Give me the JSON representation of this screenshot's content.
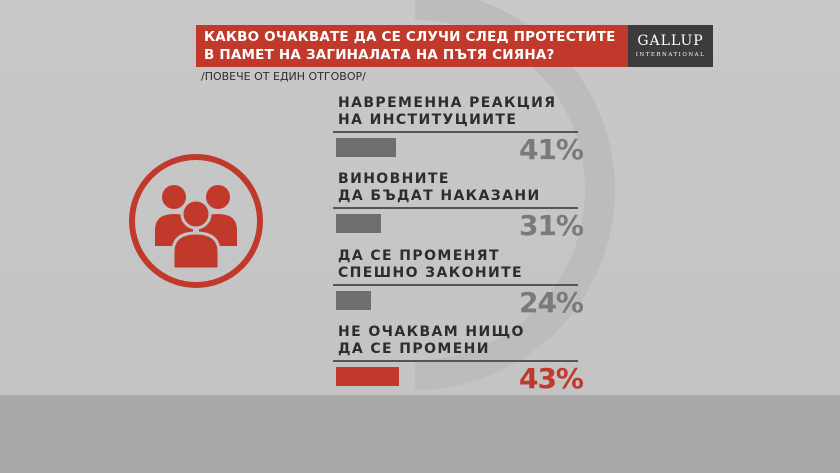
{
  "header": {
    "title_lines": [
      "КАКВО ОЧАКВАТЕ ДА СЕ СЛУЧИ СЛЕД ПРОТЕСТИТЕ",
      "В ПАМЕТ НА ЗАГИНАЛАТА НА ПЪТЯ СИЯНА?"
    ],
    "subtitle": "/ПОВЕЧЕ ОТ ЕДИН ОТГОВОР/",
    "logo_text": "GALLUP",
    "logo_sub": "INTERNATIONAL"
  },
  "icons": {
    "people": "people-group-icon"
  },
  "colors": {
    "accent_red": "#c0392b",
    "bar_gray": "#6e6e6e",
    "pct_gray": "#7a7a7a",
    "text_dark": "#2d2d2d",
    "logo_bg": "#3c3c3c"
  },
  "chart_data": {
    "type": "bar",
    "orientation": "horizontal",
    "unit": "%",
    "xlim": [
      0,
      100
    ],
    "highlight_index": 3,
    "categories": [
      [
        "НАВРЕМЕННА РЕАКЦИЯ",
        "НА ИНСТИТУЦИИТЕ"
      ],
      [
        "ВИНОВНИТЕ",
        "ДА БЪДАТ НАКАЗАНИ"
      ],
      [
        "ДА СЕ ПРОМЕНЯТ",
        "СПЕШНО ЗАКОНИТЕ"
      ],
      [
        "НЕ ОЧАКВАМ НИЩО",
        "ДА СЕ ПРОМЕНИ"
      ]
    ],
    "values": [
      41,
      31,
      24,
      43
    ],
    "labels": [
      "41%",
      "31%",
      "24%",
      "43%"
    ]
  }
}
